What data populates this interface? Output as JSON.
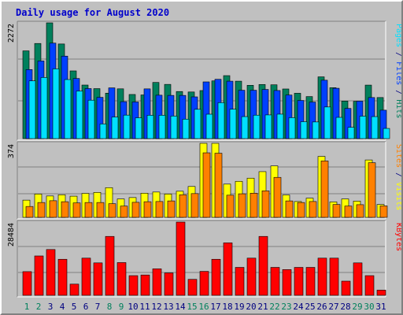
{
  "title": "Daily usage for August 2020",
  "colors": {
    "frame_bg": "#c0c0c0",
    "panel_bg": "#c0c0c0",
    "hits": "#00805c",
    "files": "#0040ff",
    "pages": "#00e0ff",
    "visits": "#ffff00",
    "sites": "#ff8000",
    "kbytes": "#ff0000",
    "title": "#0000cc",
    "weekend_day": "#00805c",
    "weekday": "#000080"
  },
  "chart_data": [
    {
      "type": "bar",
      "name": "hits-files-pages",
      "axis_max_label": "2272",
      "ylim": [
        0,
        2272
      ],
      "side_label": [
        {
          "text": "Pages",
          "color": "#00e0ff"
        },
        {
          "text": " / ",
          "color": "#000080"
        },
        {
          "text": "Files",
          "color": "#0040ff"
        },
        {
          "text": " / ",
          "color": "#000080"
        },
        {
          "text": "Hits",
          "color": "#00805c"
        }
      ],
      "categories": [
        "1",
        "2",
        "3",
        "4",
        "5",
        "6",
        "7",
        "8",
        "9",
        "10",
        "11",
        "12",
        "13",
        "14",
        "15",
        "16",
        "17",
        "18",
        "19",
        "20",
        "21",
        "22",
        "23",
        "24",
        "25",
        "26",
        "27",
        "28",
        "29",
        "30",
        "31"
      ],
      "series": [
        {
          "name": "Hits",
          "color": "#00805c",
          "values": [
            1722,
            1867,
            2272,
            1857,
            1329,
            1051,
            981,
            892,
            977,
            866,
            857,
            1102,
            1064,
            924,
            915,
            943,
            1133,
            1236,
            1127,
            1046,
            1062,
            1056,
            974,
            890,
            825,
            1212,
            999,
            736,
            731,
            1050,
            806
          ]
        },
        {
          "name": "Files",
          "color": "#0040ff",
          "values": [
            1355,
            1524,
            1874,
            1619,
            1180,
            982,
            810,
            996,
            725,
            719,
            976,
            852,
            848,
            848,
            819,
            1113,
            1164,
            1127,
            949,
            949,
            965,
            944,
            855,
            749,
            717,
            1146,
            988,
            592,
            735,
            806,
            558
          ]
        },
        {
          "name": "Pages",
          "color": "#00e0ff",
          "values": [
            1133,
            1200,
            1369,
            1159,
            934,
            754,
            288,
            424,
            461,
            409,
            459,
            459,
            443,
            382,
            575,
            479,
            706,
            577,
            432,
            460,
            465,
            480,
            411,
            332,
            327,
            621,
            417,
            222,
            441,
            432,
            200
          ]
        }
      ]
    },
    {
      "type": "bar",
      "name": "visits-sites",
      "axis_max_label": "374",
      "ylim": [
        0,
        374
      ],
      "side_label": [
        {
          "text": "Sites",
          "color": "#ff8000"
        },
        {
          "text": " / ",
          "color": "#000080"
        },
        {
          "text": "Visits",
          "color": "#ffff00"
        }
      ],
      "categories": [
        "1",
        "2",
        "3",
        "4",
        "5",
        "6",
        "7",
        "8",
        "9",
        "10",
        "11",
        "12",
        "13",
        "14",
        "15",
        "16",
        "17",
        "18",
        "19",
        "20",
        "21",
        "22",
        "23",
        "24",
        "25",
        "26",
        "27",
        "28",
        "29",
        "30",
        "31"
      ],
      "series": [
        {
          "name": "Visits",
          "color": "#ffff00",
          "values": [
            87,
            118,
            108,
            114,
            107,
            121,
            126,
            150,
            93,
            100,
            122,
            128,
            118,
            132,
            156,
            374,
            374,
            168,
            182,
            198,
            231,
            260,
            113,
            80,
            97,
            308,
            78,
            93,
            82,
            290,
            65
          ]
        },
        {
          "name": "Sites",
          "color": "#ff8000",
          "values": [
            55,
            75,
            84,
            79,
            73,
            75,
            75,
            69,
            57,
            76,
            79,
            80,
            83,
            114,
            120,
            326,
            324,
            112,
            119,
            122,
            134,
            202,
            83,
            75,
            80,
            285,
            65,
            57,
            64,
            276,
            58
          ]
        }
      ]
    },
    {
      "type": "bar",
      "name": "kbytes",
      "axis_max_label": "28484",
      "ylim": [
        0,
        28484
      ],
      "side_label": [
        {
          "text": "KBytes",
          "color": "#ff0000"
        }
      ],
      "categories": [
        "1",
        "2",
        "3",
        "4",
        "5",
        "6",
        "7",
        "8",
        "9",
        "10",
        "11",
        "12",
        "13",
        "14",
        "15",
        "16",
        "17",
        "18",
        "19",
        "20",
        "21",
        "22",
        "23",
        "24",
        "25",
        "26",
        "27",
        "28",
        "29",
        "30",
        "31"
      ],
      "series": [
        {
          "name": "KBytes",
          "color": "#ff0000",
          "values": [
            9212,
            15314,
            17815,
            14014,
            4352,
            14463,
            12614,
            22908,
            12733,
            7652,
            7905,
            10308,
            8713,
            28484,
            6210,
            9315,
            14014,
            20410,
            10864,
            14463,
            22908,
            10864,
            10014,
            10864,
            10864,
            14463,
            14463,
            5513,
            12614,
            7652,
            2016
          ]
        }
      ]
    }
  ],
  "x_labels": [
    "1",
    "2",
    "3",
    "4",
    "5",
    "6",
    "7",
    "8",
    "9",
    "10",
    "11",
    "12",
    "13",
    "14",
    "15",
    "16",
    "17",
    "18",
    "19",
    "20",
    "21",
    "22",
    "23",
    "24",
    "25",
    "26",
    "27",
    "28",
    "29",
    "30",
    "31"
  ],
  "weekend_days": [
    "1",
    "2",
    "8",
    "9",
    "15",
    "16",
    "22",
    "23",
    "29",
    "30"
  ]
}
